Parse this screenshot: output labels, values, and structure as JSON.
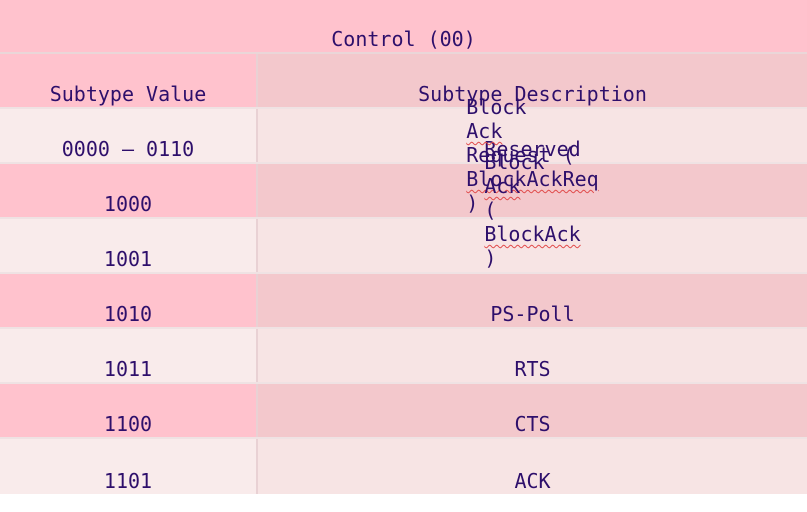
{
  "title": "Control (00)",
  "headers": {
    "value": "Subtype Value",
    "description": "Subtype Description"
  },
  "rows": [
    {
      "value": "0000 – 0110",
      "description": "Reserved"
    },
    {
      "value": "1000",
      "description_parts": [
        "Block ",
        "Ack",
        " Request (",
        "BlockAckReq",
        ")"
      ]
    },
    {
      "value": "1001",
      "description_parts": [
        "Block ",
        "Ack",
        " (",
        "BlockAck",
        ")"
      ]
    },
    {
      "value": "1010",
      "description": "PS-Poll"
    },
    {
      "value": "1011",
      "description": "RTS"
    },
    {
      "value": "1100",
      "description": "CTS"
    },
    {
      "value": "1101",
      "description": "ACK"
    }
  ],
  "colors": {
    "text": "#2e0f6b",
    "pink_dark": "#ffc2cd",
    "pink_mid": "#f3c8cc",
    "pink_light": "#f9ebeb",
    "spellcheck": "#e04a4a"
  }
}
